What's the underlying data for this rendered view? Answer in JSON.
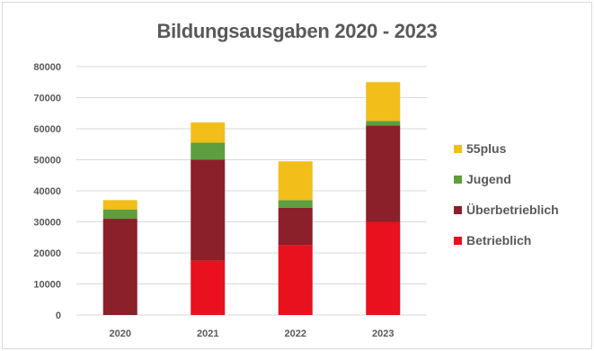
{
  "chart_data": {
    "type": "bar",
    "stacked": true,
    "title": "Bildungsausgaben 2020 - 2023",
    "xlabel": "",
    "ylabel": "",
    "ylim": [
      0,
      80000
    ],
    "yticks": [
      0,
      10000,
      20000,
      30000,
      40000,
      50000,
      60000,
      70000,
      80000
    ],
    "grid": true,
    "legend_position": "right",
    "categories": [
      "2020",
      "2021",
      "2022",
      "2023"
    ],
    "series": [
      {
        "name": "Betrieblich",
        "color": "#e8111d",
        "values": [
          0,
          17500,
          22500,
          30000
        ]
      },
      {
        "name": "Überbetrieblich",
        "color": "#8b1f2a",
        "values": [
          31000,
          32500,
          12000,
          31000
        ]
      },
      {
        "name": "Jugend",
        "color": "#5e9e3e",
        "values": [
          3000,
          5500,
          2500,
          1500
        ]
      },
      {
        "name": "55plus",
        "color": "#f2be1a",
        "values": [
          3000,
          6500,
          12500,
          12500
        ]
      }
    ]
  }
}
